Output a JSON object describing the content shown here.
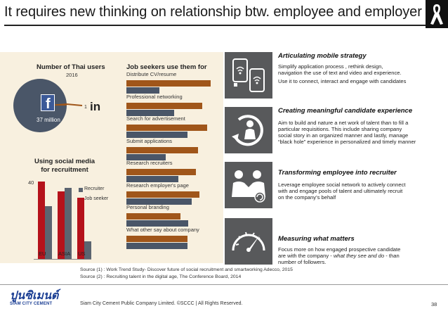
{
  "title": "It requires new thinking on relationship btw. employee and employer",
  "thai_users": {
    "heading": "Number of Thai users",
    "year": "2016",
    "facebook_value": "37 million",
    "linkedin_value": "1",
    "linkedin_label": "in",
    "facebook_label": "f"
  },
  "job_seekers": {
    "heading": "Job seekers use them for",
    "items": [
      {
        "label": "Distribute CV/resume",
        "red": 0.97,
        "gray": 0.38
      },
      {
        "label": "Professional networking",
        "red": 0.87,
        "gray": 0.55
      },
      {
        "label": "Search for advertisement",
        "red": 0.93,
        "gray": 0.7
      },
      {
        "label": "Submit applications",
        "red": 0.82,
        "gray": 0.45
      },
      {
        "label": "Research recruiters",
        "red": 0.8,
        "gray": 0.6
      },
      {
        "label": "Research employer's page",
        "red": 0.84,
        "gray": 0.75
      },
      {
        "label": "Personal branding",
        "red": 0.62,
        "gray": 0.71
      },
      {
        "label": "What other say about company",
        "red": 0.7,
        "gray": 0.7
      }
    ]
  },
  "social_media": {
    "heading_line1": "Using social media",
    "heading_line2": "for recruitment",
    "ymax_label": "40",
    "legend_recruiter": "Recruiter",
    "legend_jobseeker": "Job seeker",
    "categories": [
      "EU",
      "ASIA",
      "US"
    ],
    "recruiter": [
      1.0,
      0.87,
      0.79
    ],
    "jobseeker": [
      0.68,
      0.92,
      0.23
    ]
  },
  "sections": [
    {
      "title": "Articulating mobile strategy",
      "lines": [
        "Simplify application process , rethink design,",
        "navigation the use of text and video and experience.",
        "Use it to connect, interact and engage with candidates"
      ]
    },
    {
      "title": "Creating meaningful candidate experience",
      "lines": [
        "Aim to build and nature a net work of talent than to fill a",
        "particular requisitions. This include sharing company",
        "social story in an organized manner and lastly, manage",
        "“black hole” experience in personalized and timely manner"
      ]
    },
    {
      "title": "Transforming employee into recruiter",
      "lines": [
        "Leverage employee social network to actively connect",
        "with and engage pools of talent and ultimately recruit",
        "on the company’s behalf"
      ]
    },
    {
      "title": "Measuring what matters",
      "line1": "Focus more on how engaged prospective candidate",
      "line2_pre": "are with the company - ",
      "line2_em": "what they see  and do",
      "line2_post": " -  than",
      "line3": "number of followers."
    }
  ],
  "sources": [
    "Source  (1) : Work Trend Study- Discover future of social recruitment and smartworking Adecco, 2015",
    "Source  (2) : Recruiting talent in the digital age, The Conference Board, 2014"
  ],
  "footer": {
    "logo_thai": "ปูนซิเมนต์",
    "logo_en": "SIAM CITY CEMENT",
    "copyright": "Siam City Cement Public Company Limited. ©SCCC | All Rights Reserved.",
    "page": "38"
  },
  "colors": {
    "bar_red": "#a0561a",
    "bar_gray": "#4a5668",
    "recruiter": "#b5121b",
    "jobseeker": "#5b6470",
    "panel": "#f8f0df",
    "icon_box": "#58595b",
    "facebook": "#3b5998"
  }
}
